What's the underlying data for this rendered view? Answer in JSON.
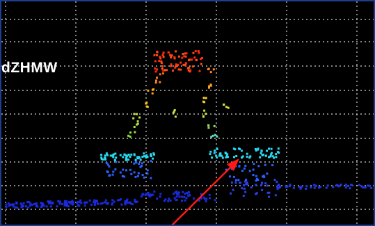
{
  "panel": {
    "side_label": "dZHMW"
  },
  "colors": {
    "background": "#000000",
    "grid": "#d8d8d8",
    "frame": "#1c3f8f",
    "annotation_arrow": "#ff1a1a"
  },
  "chart_data": {
    "type": "scatter",
    "title": "",
    "xlabel": "",
    "ylabel": "",
    "grid": true,
    "xlim": [
      0,
      539
    ],
    "ylim": [
      0,
      325
    ],
    "color_scale": [
      "#1020c8",
      "#2a60ff",
      "#29d8f0",
      "#a8e040",
      "#f0c020",
      "#ff8020",
      "#ff2a10"
    ],
    "series": [
      {
        "name": "",
        "points": []
      }
    ]
  }
}
